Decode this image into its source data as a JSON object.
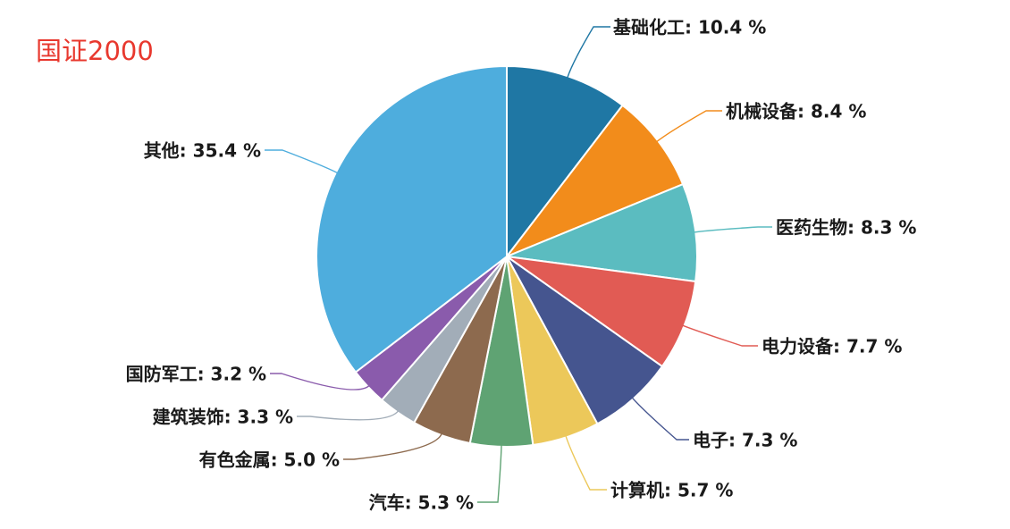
{
  "chart_data": {
    "type": "pie",
    "title": "国证2000",
    "unit": "%",
    "slices": [
      {
        "name": "基础化工",
        "value": 10.4,
        "label": "基础化工: 10.4 %",
        "color": "#1f77a4"
      },
      {
        "name": "机械设备",
        "value": 8.4,
        "label": "机械设备: 8.4 %",
        "color": "#f28c1b"
      },
      {
        "name": "医药生物",
        "value": 8.3,
        "label": "医药生物: 8.3 %",
        "color": "#5bbcc0"
      },
      {
        "name": "电力设备",
        "value": 7.7,
        "label": "电力设备: 7.7 %",
        "color": "#e15b54"
      },
      {
        "name": "电子",
        "value": 7.3,
        "label": "电子: 7.3 %",
        "color": "#45558f"
      },
      {
        "name": "计算机",
        "value": 5.7,
        "label": "计算机: 5.7 %",
        "color": "#ecc85a"
      },
      {
        "name": "汽车",
        "value": 5.3,
        "label": "汽车: 5.3 %",
        "color": "#5fa373"
      },
      {
        "name": "有色金属",
        "value": 5.0,
        "label": "有色金属: 5.0 %",
        "color": "#8d6a4e"
      },
      {
        "name": "建筑装饰",
        "value": 3.3,
        "label": "建筑装饰: 3.3 %",
        "color": "#a2adb8"
      },
      {
        "name": "国防军工",
        "value": 3.2,
        "label": "国防军工: 3.2 %",
        "color": "#8a5bac"
      },
      {
        "name": "其他",
        "value": 35.4,
        "label": "其他: 35.4 %",
        "color": "#4eaddd"
      }
    ]
  }
}
